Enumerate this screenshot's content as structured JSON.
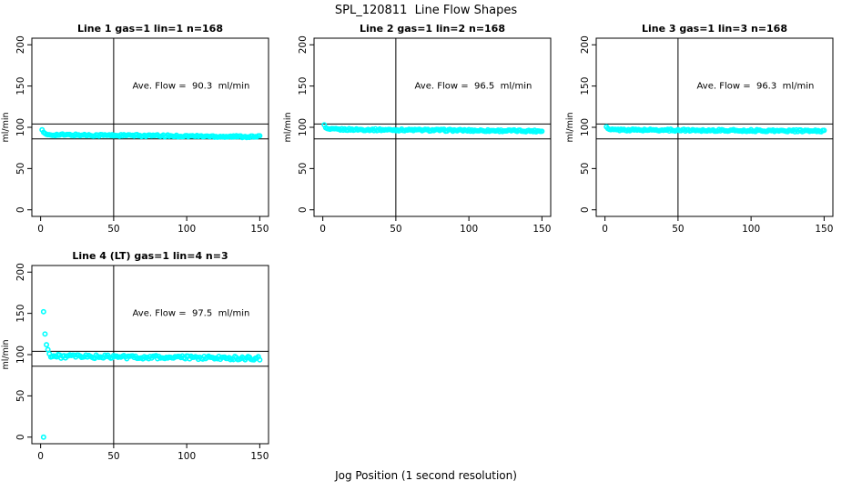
{
  "page": {
    "title": "SPL_120811  Line Flow Shapes",
    "xlabel": "Jog Position (1 second resolution)"
  },
  "style": {
    "point_color": "#00FFFF",
    "axis_color": "#000000",
    "background": "#FFFFFF"
  },
  "chart_data": [
    {
      "type": "scatter",
      "title": "Line 1 gas=1 lin=1 n=168",
      "annotation": "Ave. Flow =  90.3  ml/min",
      "ave_flow": 90.3,
      "n": 168,
      "ylabel": "ml/min",
      "xlim": [
        0,
        150
      ],
      "ylim": [
        0,
        200
      ],
      "xticks": [
        0,
        50,
        100,
        150
      ],
      "yticks": [
        0,
        50,
        100,
        150,
        200
      ],
      "vline_x": 50,
      "hlines": [
        104,
        86
      ],
      "transient_points": [
        [
          1,
          97
        ],
        [
          2,
          94
        ],
        [
          3,
          92.5
        ],
        [
          4,
          91.5
        ]
      ],
      "steady_band": {
        "x_start": 5,
        "x_end": 150,
        "value_start": 91,
        "value_end": 88.5,
        "jitter": 1.2
      }
    },
    {
      "type": "scatter",
      "title": "Line 2 gas=1 lin=2 n=168",
      "annotation": "Ave. Flow =  96.5  ml/min",
      "ave_flow": 96.5,
      "n": 168,
      "ylabel": "ml/min",
      "xlim": [
        0,
        150
      ],
      "ylim": [
        0,
        200
      ],
      "xticks": [
        0,
        50,
        100,
        150
      ],
      "yticks": [
        0,
        50,
        100,
        150,
        200
      ],
      "vline_x": 50,
      "hlines": [
        104,
        86
      ],
      "transient_points": [
        [
          1,
          103
        ],
        [
          2,
          99.5
        ],
        [
          3,
          98.5
        ]
      ],
      "steady_band": {
        "x_start": 4,
        "x_end": 150,
        "value_start": 97.5,
        "value_end": 95.5,
        "jitter": 1.1
      }
    },
    {
      "type": "scatter",
      "title": "Line 3 gas=1 lin=3 n=168",
      "annotation": "Ave. Flow =  96.3  ml/min",
      "ave_flow": 96.3,
      "n": 168,
      "ylabel": "ml/min",
      "xlim": [
        0,
        150
      ],
      "ylim": [
        0,
        200
      ],
      "xticks": [
        0,
        50,
        100,
        150
      ],
      "yticks": [
        0,
        50,
        100,
        150,
        200
      ],
      "vline_x": 50,
      "hlines": [
        104,
        86
      ],
      "transient_points": [
        [
          1,
          100.5
        ],
        [
          2,
          98.5
        ]
      ],
      "steady_band": {
        "x_start": 3,
        "x_end": 150,
        "value_start": 97,
        "value_end": 95.5,
        "jitter": 1.1
      }
    },
    {
      "type": "scatter",
      "title": "Line 4 (LT) gas=1 lin=4 n=3",
      "annotation": "Ave. Flow =  97.5  ml/min",
      "ave_flow": 97.5,
      "n": 3,
      "ylabel": "ml/min",
      "xlim": [
        0,
        150
      ],
      "ylim": [
        0,
        200
      ],
      "xticks": [
        0,
        50,
        100,
        150
      ],
      "yticks": [
        0,
        50,
        100,
        150,
        200
      ],
      "vline_x": 50,
      "hlines": [
        104,
        86
      ],
      "transient_points": [
        [
          2,
          0
        ],
        [
          2,
          152
        ],
        [
          3,
          125
        ],
        [
          4,
          112
        ],
        [
          5,
          106
        ],
        [
          6,
          101
        ]
      ],
      "steady_band": {
        "x_start": 7,
        "x_end": 150,
        "value_start": 98,
        "value_end": 95.5,
        "jitter": 2.2
      }
    }
  ]
}
